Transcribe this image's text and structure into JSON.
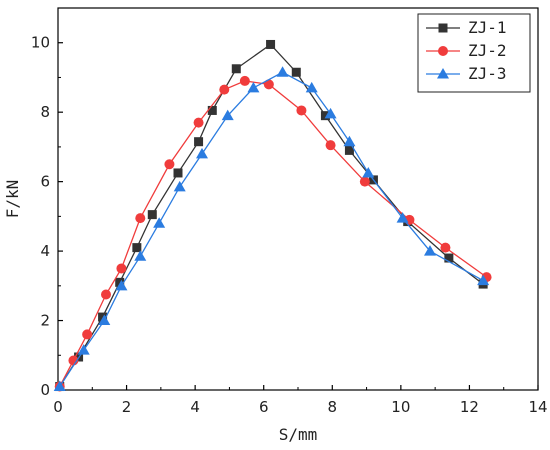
{
  "chart_data": {
    "type": "line",
    "title": "",
    "xlabel": "S/mm",
    "ylabel": "F/kN",
    "xlim": [
      0,
      14
    ],
    "ylim": [
      0,
      11
    ],
    "xticks": [
      0,
      2,
      4,
      6,
      8,
      10,
      12,
      14
    ],
    "yticks": [
      0,
      2,
      4,
      6,
      8,
      10
    ],
    "grid": false,
    "legend_position": "top-right",
    "series": [
      {
        "name": "ZJ-1",
        "color": "#333333",
        "marker": "square",
        "x": [
          0.05,
          0.6,
          1.3,
          1.8,
          2.3,
          2.75,
          3.5,
          4.1,
          4.5,
          5.2,
          6.2,
          6.95,
          7.8,
          8.5,
          9.2,
          10.2,
          11.4,
          12.4
        ],
        "y": [
          0.1,
          0.95,
          2.1,
          3.1,
          4.1,
          5.05,
          6.25,
          7.15,
          8.05,
          9.25,
          9.95,
          9.15,
          7.9,
          6.9,
          6.05,
          4.85,
          3.8,
          3.05
        ]
      },
      {
        "name": "ZJ-2",
        "color": "#f03c3c",
        "marker": "circle",
        "x": [
          0.05,
          0.45,
          0.85,
          1.4,
          1.85,
          2.4,
          3.25,
          4.1,
          4.85,
          5.45,
          6.15,
          7.1,
          7.95,
          8.95,
          10.25,
          11.3,
          12.5
        ],
        "y": [
          0.1,
          0.85,
          1.6,
          2.75,
          3.5,
          4.95,
          6.5,
          7.7,
          8.65,
          8.9,
          8.8,
          8.05,
          7.05,
          6.0,
          4.9,
          4.1,
          3.25
        ]
      },
      {
        "name": "ZJ-3",
        "color": "#2b7ce0",
        "marker": "triangle",
        "x": [
          0.05,
          0.75,
          1.35,
          1.85,
          2.4,
          2.95,
          3.55,
          4.2,
          4.95,
          5.7,
          6.55,
          7.4,
          7.95,
          8.5,
          9.05,
          10.05,
          10.85,
          12.4
        ],
        "y": [
          0.1,
          1.15,
          2.0,
          3.0,
          3.85,
          4.8,
          5.85,
          6.8,
          7.9,
          8.7,
          9.15,
          8.7,
          7.95,
          7.15,
          6.25,
          4.95,
          4.0,
          3.15
        ]
      }
    ]
  }
}
